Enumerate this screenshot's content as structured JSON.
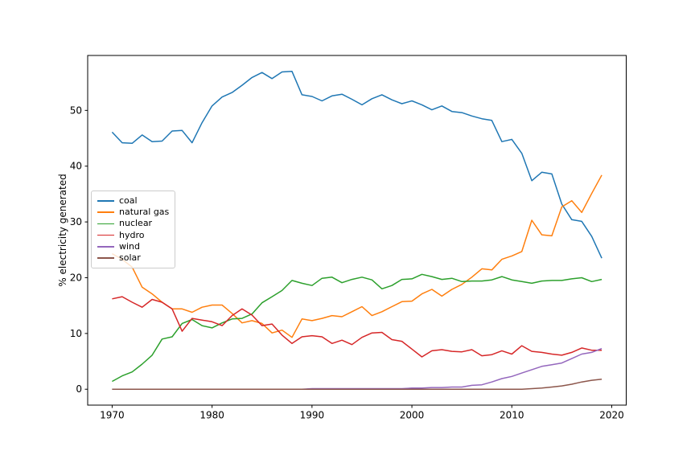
{
  "chart_data": {
    "type": "line",
    "title": "",
    "xlabel": "",
    "ylabel": "% electricity generated",
    "xlim": [
      1967.55,
      2021.45
    ],
    "ylim": [
      -2.85,
      59.85
    ],
    "xticks": [
      1970,
      1980,
      1990,
      2000,
      2010,
      2020
    ],
    "yticks": [
      0,
      10,
      20,
      30,
      40,
      50
    ],
    "grid": false,
    "legend_position": "center-left",
    "x": [
      1970,
      1971,
      1972,
      1973,
      1974,
      1975,
      1976,
      1977,
      1978,
      1979,
      1980,
      1981,
      1982,
      1983,
      1984,
      1985,
      1986,
      1987,
      1988,
      1989,
      1990,
      1991,
      1992,
      1993,
      1994,
      1995,
      1996,
      1997,
      1998,
      1999,
      2000,
      2001,
      2002,
      2003,
      2004,
      2005,
      2006,
      2007,
      2008,
      2009,
      2010,
      2011,
      2012,
      2013,
      2014,
      2015,
      2016,
      2017,
      2018,
      2019
    ],
    "series": [
      {
        "name": "coal",
        "color": "#1f77b4",
        "values": [
          46.1,
          44.2,
          44.1,
          45.6,
          44.4,
          44.5,
          46.3,
          46.4,
          44.2,
          47.8,
          50.8,
          52.4,
          53.2,
          54.5,
          55.9,
          56.8,
          55.7,
          56.9,
          57.0,
          52.8,
          52.5,
          51.7,
          52.6,
          52.9,
          52.0,
          51.0,
          52.1,
          52.8,
          51.9,
          51.2,
          51.7,
          51.0,
          50.1,
          50.8,
          49.8,
          49.6,
          49.0,
          48.5,
          48.2,
          44.4,
          44.8,
          42.3,
          37.4,
          38.9,
          38.6,
          33.2,
          30.4,
          30.1,
          27.4,
          23.5
        ]
      },
      {
        "name": "natural gas",
        "color": "#ff7f0e",
        "values": [
          24.3,
          23.3,
          21.9,
          18.3,
          17.1,
          15.6,
          14.4,
          14.4,
          13.8,
          14.7,
          15.1,
          15.1,
          13.6,
          11.9,
          12.3,
          11.8,
          10.1,
          10.6,
          9.3,
          12.6,
          12.3,
          12.7,
          13.2,
          13.0,
          13.9,
          14.8,
          13.2,
          13.9,
          14.8,
          15.7,
          15.8,
          17.1,
          17.9,
          16.7,
          17.9,
          18.8,
          20.1,
          21.6,
          21.4,
          23.3,
          23.9,
          24.7,
          30.3,
          27.7,
          27.5,
          32.7,
          33.8,
          31.7,
          35.1,
          38.4
        ]
      },
      {
        "name": "nuclear",
        "color": "#2ca02c",
        "values": [
          1.4,
          2.4,
          3.1,
          4.5,
          6.1,
          9.0,
          9.4,
          11.8,
          12.5,
          11.4,
          11.0,
          11.9,
          12.6,
          12.7,
          13.5,
          15.5,
          16.6,
          17.7,
          19.5,
          19.0,
          18.6,
          19.9,
          20.1,
          19.1,
          19.7,
          20.1,
          19.6,
          18.0,
          18.6,
          19.7,
          19.8,
          20.6,
          20.2,
          19.7,
          19.9,
          19.3,
          19.4,
          19.4,
          19.6,
          20.2,
          19.6,
          19.3,
          19.0,
          19.4,
          19.5,
          19.5,
          19.8,
          20.0,
          19.3,
          19.7
        ]
      },
      {
        "name": "hydro",
        "color": "#d62728",
        "values": [
          16.2,
          16.6,
          15.6,
          14.7,
          16.1,
          15.6,
          14.4,
          10.4,
          12.7,
          12.4,
          12.1,
          11.4,
          13.2,
          14.4,
          13.3,
          11.4,
          11.7,
          9.7,
          8.2,
          9.4,
          9.6,
          9.4,
          8.2,
          8.8,
          8.0,
          9.3,
          10.1,
          10.2,
          8.9,
          8.6,
          7.2,
          5.8,
          6.9,
          7.1,
          6.8,
          6.7,
          7.1,
          6.0,
          6.2,
          6.9,
          6.3,
          7.8,
          6.8,
          6.6,
          6.3,
          6.1,
          6.6,
          7.4,
          7.0,
          7.0
        ]
      },
      {
        "name": "wind",
        "color": "#9467bd",
        "values": [
          0.0,
          0.0,
          0.0,
          0.0,
          0.0,
          0.0,
          0.0,
          0.0,
          0.0,
          0.0,
          0.0,
          0.0,
          0.0,
          0.0,
          0.0,
          0.0,
          0.0,
          0.0,
          0.0,
          0.0,
          0.1,
          0.1,
          0.1,
          0.1,
          0.1,
          0.1,
          0.1,
          0.1,
          0.1,
          0.1,
          0.2,
          0.2,
          0.3,
          0.3,
          0.4,
          0.4,
          0.7,
          0.8,
          1.3,
          1.9,
          2.3,
          2.9,
          3.5,
          4.1,
          4.4,
          4.7,
          5.5,
          6.3,
          6.6,
          7.3
        ]
      },
      {
        "name": "solar",
        "color": "#8c564b",
        "values": [
          0.0,
          0.0,
          0.0,
          0.0,
          0.0,
          0.0,
          0.0,
          0.0,
          0.0,
          0.0,
          0.0,
          0.0,
          0.0,
          0.0,
          0.0,
          0.0,
          0.0,
          0.0,
          0.0,
          0.0,
          0.0,
          0.0,
          0.0,
          0.0,
          0.0,
          0.0,
          0.0,
          0.0,
          0.0,
          0.0,
          0.0,
          0.0,
          0.0,
          0.0,
          0.0,
          0.0,
          0.0,
          0.0,
          0.0,
          0.0,
          0.0,
          0.0,
          0.1,
          0.2,
          0.4,
          0.6,
          0.9,
          1.3,
          1.6,
          1.8
        ]
      }
    ]
  }
}
